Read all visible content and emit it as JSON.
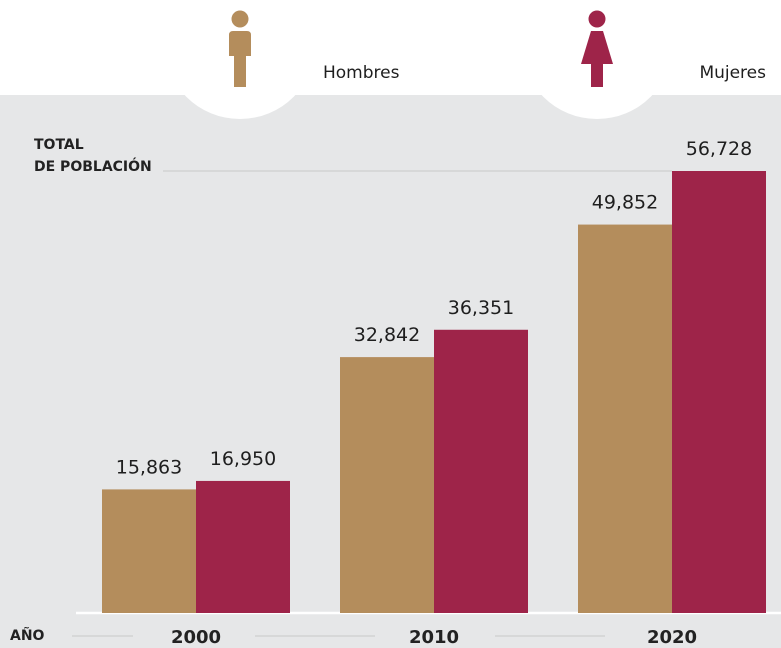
{
  "colors": {
    "hombres": "#B48D5C",
    "mujeres": "#9E2449",
    "panel_bg": "#E6E7E8",
    "rule": "#c8c8c8"
  },
  "legend": [
    {
      "label": "Hombres",
      "icon": "man-icon"
    },
    {
      "label": "Mujeres",
      "icon": "woman-icon"
    }
  ],
  "y_title_line1": "TOTAL",
  "y_title_line2": "DE POBLACIÓN",
  "x_title": "AÑO",
  "chart_data": {
    "type": "bar",
    "categories": [
      "2000",
      "2010",
      "2020"
    ],
    "series": [
      {
        "name": "Hombres",
        "values": [
          15863,
          32842,
          49852
        ],
        "labels": [
          "15,863",
          "32,842",
          "49,852"
        ]
      },
      {
        "name": "Mujeres",
        "values": [
          16950,
          36351,
          56728
        ],
        "labels": [
          "16,950",
          "36,351",
          "56,728"
        ]
      }
    ],
    "xlabel": "AÑO",
    "ylabel": "TOTAL DE POBLACIÓN",
    "ylim": [
      0,
      56728
    ],
    "grid": false,
    "legend_position": "top"
  }
}
